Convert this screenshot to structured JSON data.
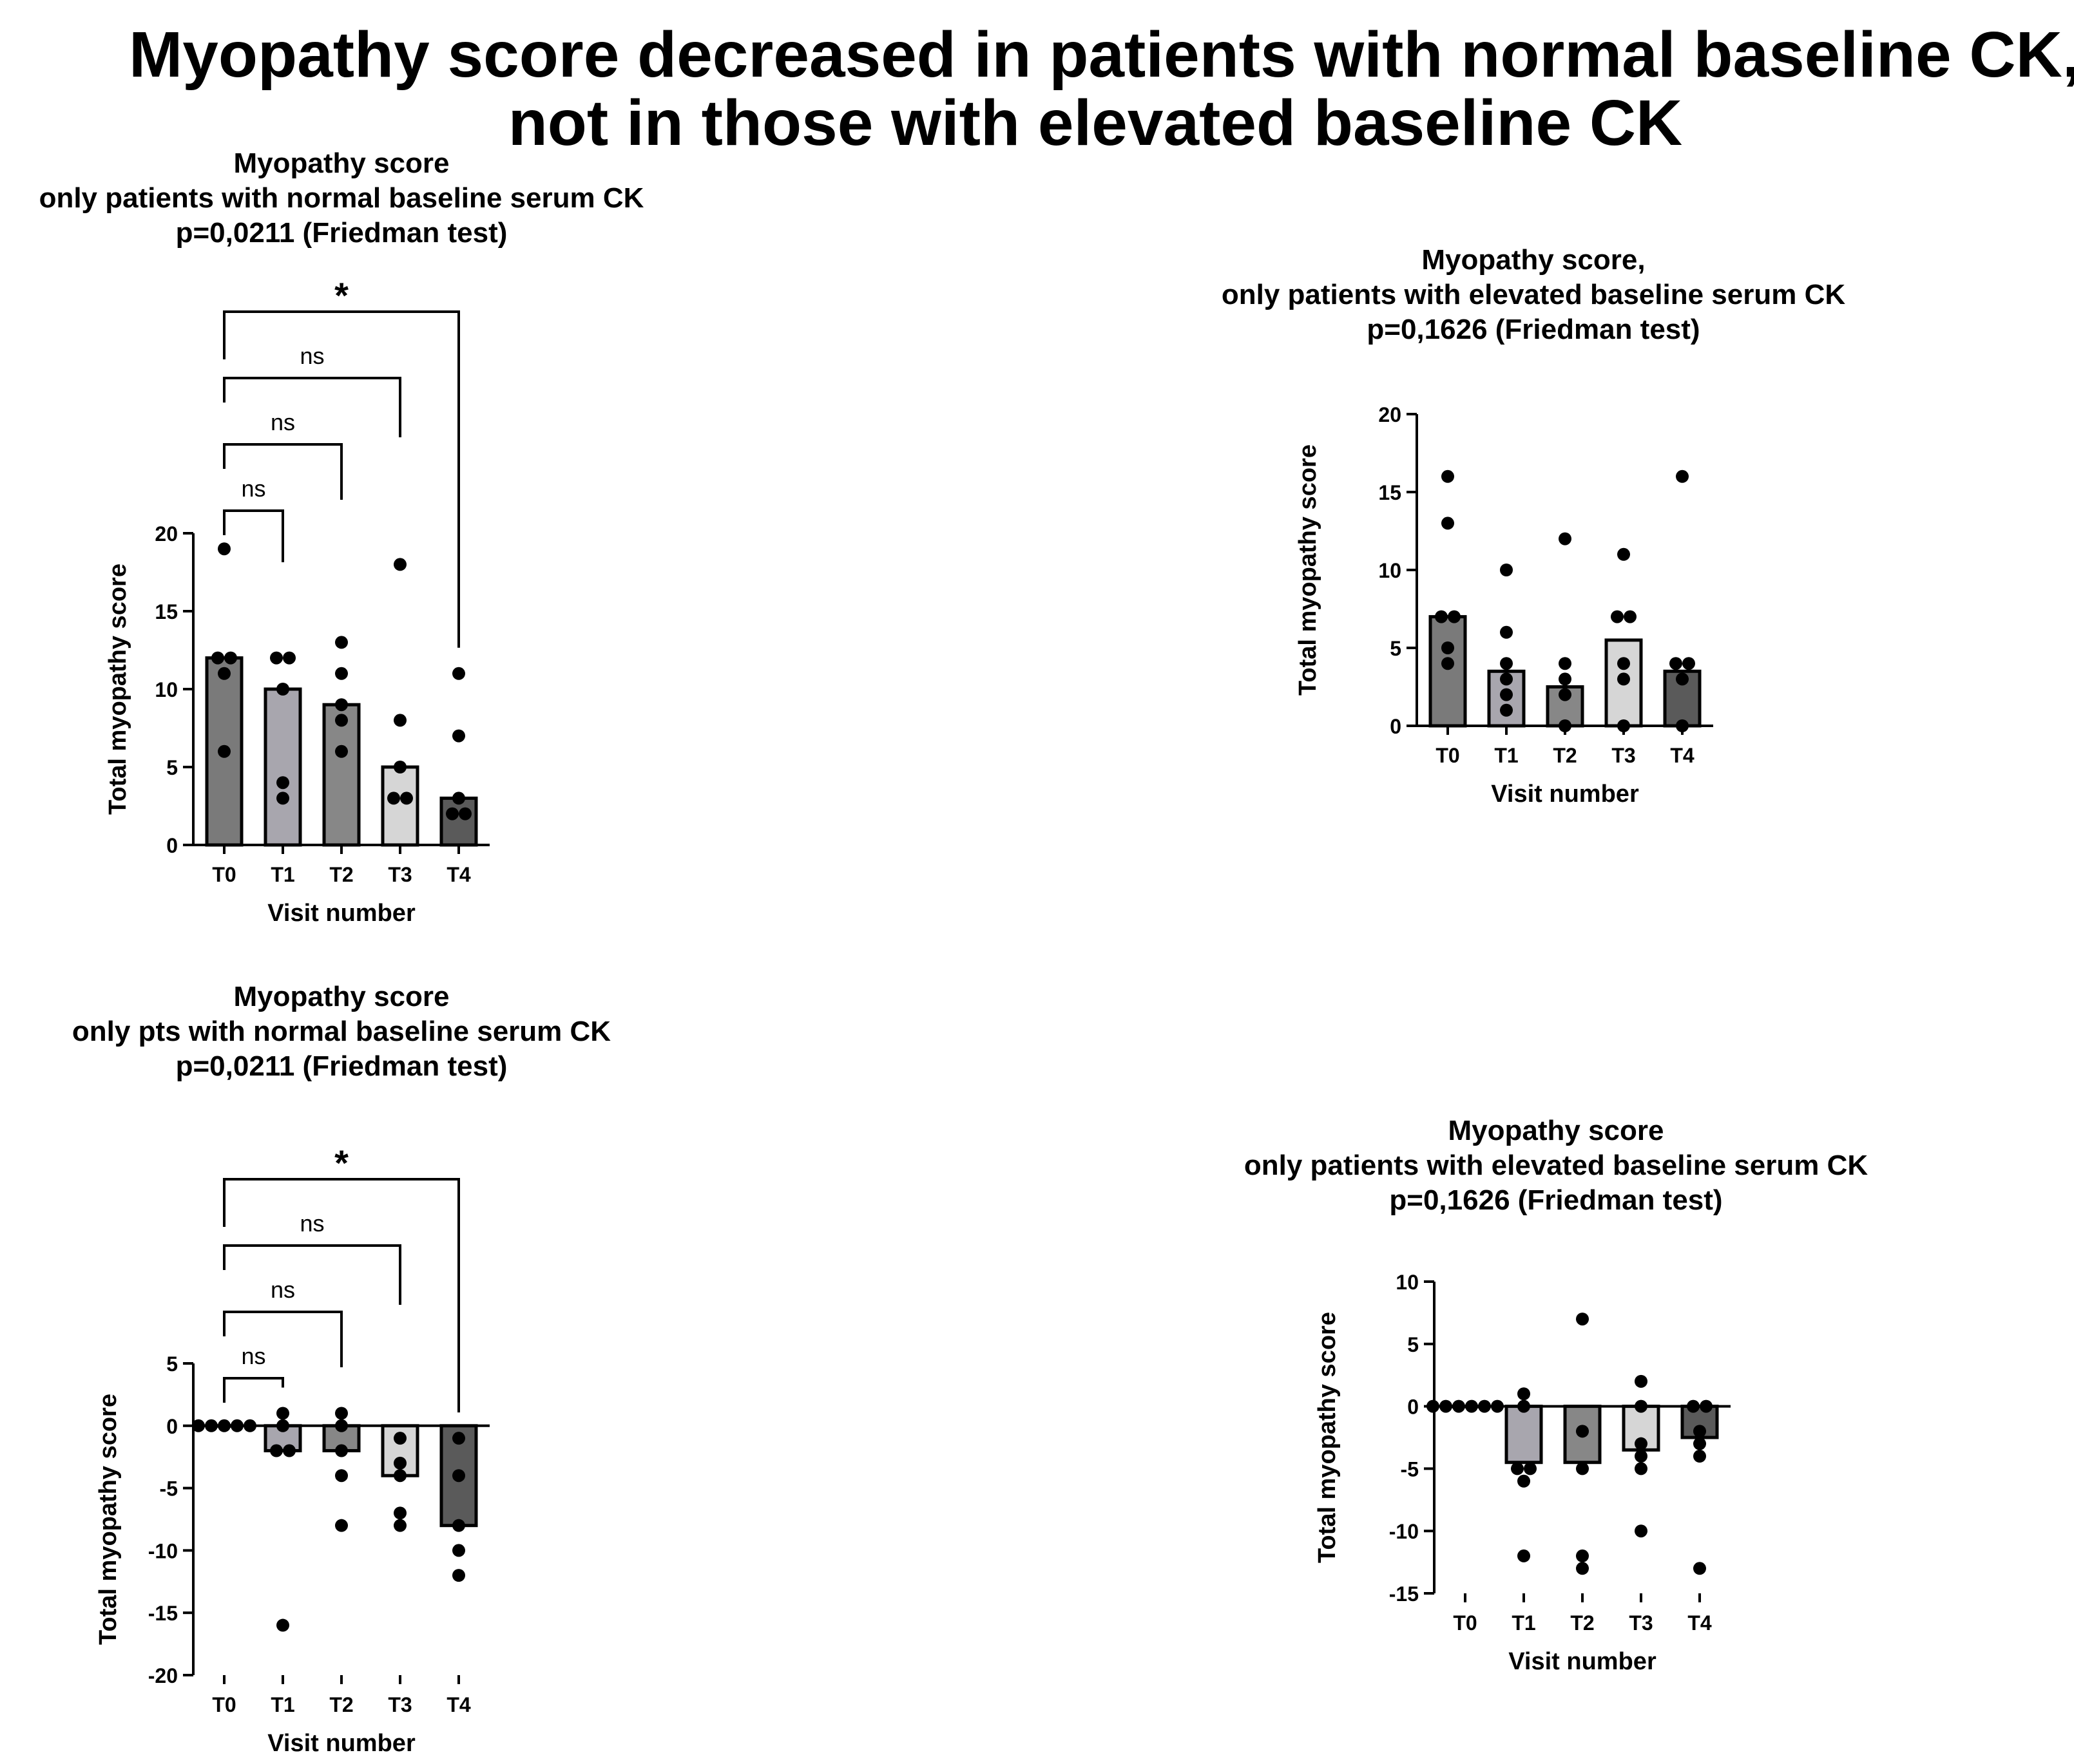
{
  "figure": {
    "title_line1": "Myopathy score decreased in patients with normal baseline CK,",
    "title_line2": "not in those with elevated baseline CK"
  },
  "chart_data": [
    {
      "type": "bar",
      "title": [
        "Myopathy score",
        "only patients with normal baseline serum CK",
        "p=0,0211 (Friedman test)"
      ],
      "xlabel": "Visit number",
      "ylabel": "Total myopathy score",
      "categories": [
        "T0",
        "T1",
        "T2",
        "T3",
        "T4"
      ],
      "values": [
        12,
        10,
        9,
        5,
        3
      ],
      "points": [
        [
          19,
          12,
          12,
          11,
          6
        ],
        [
          12,
          12,
          10,
          4,
          3
        ],
        [
          13,
          11,
          9,
          8,
          6
        ],
        [
          18,
          8,
          5,
          3,
          3
        ],
        [
          11,
          7,
          3,
          2,
          2
        ]
      ],
      "ylim": [
        0,
        20
      ],
      "yticks": [
        0,
        5,
        10,
        15,
        20
      ],
      "bar_colors": [
        "#7a7a7a",
        "#a8a6ae",
        "#878787",
        "#d6d6d6",
        "#5a5a5a"
      ],
      "comparisons": [
        {
          "from": "T0",
          "to": "T1",
          "label": "ns"
        },
        {
          "from": "T0",
          "to": "T2",
          "label": "ns"
        },
        {
          "from": "T0",
          "to": "T3",
          "label": "ns"
        },
        {
          "from": "T0",
          "to": "T4",
          "label": "*"
        }
      ]
    },
    {
      "type": "bar",
      "title": [
        "Myopathy score,",
        "only patients with elevated baseline serum CK",
        "p=0,1626 (Friedman test)"
      ],
      "xlabel": "Visit number",
      "ylabel": "Total myopathy score",
      "categories": [
        "T0",
        "T1",
        "T2",
        "T3",
        "T4"
      ],
      "values": [
        7,
        3.5,
        2.5,
        5.5,
        3.5
      ],
      "points": [
        [
          16,
          13,
          7,
          7,
          5,
          4
        ],
        [
          10,
          6,
          4,
          3,
          2,
          1
        ],
        [
          12,
          4,
          3,
          2,
          0
        ],
        [
          11,
          7,
          7,
          4,
          3,
          0
        ],
        [
          16,
          4,
          4,
          3,
          0
        ]
      ],
      "ylim": [
        0,
        20
      ],
      "yticks": [
        0,
        5,
        10,
        15,
        20
      ],
      "bar_colors": [
        "#7a7a7a",
        "#a8a6ae",
        "#878787",
        "#d6d6d6",
        "#5a5a5a"
      ],
      "comparisons": []
    },
    {
      "type": "bar",
      "title": [
        "Myopathy score",
        "only pts with normal baseline serum CK",
        "p=0,0211 (Friedman test)"
      ],
      "xlabel": "Visit number",
      "ylabel": "Total myopathy score",
      "categories": [
        "T0",
        "T1",
        "T2",
        "T3",
        "T4"
      ],
      "values": [
        0,
        -2,
        -2,
        -4,
        -8
      ],
      "points": [
        [
          0,
          0,
          0,
          0,
          0
        ],
        [
          1,
          0,
          -2,
          -2,
          -16
        ],
        [
          1,
          0,
          -2,
          -4,
          -8
        ],
        [
          -1,
          -3,
          -4,
          -7,
          -8
        ],
        [
          -1,
          -4,
          -8,
          -10,
          -12
        ]
      ],
      "ylim": [
        -20,
        5
      ],
      "yticks": [
        -20,
        -15,
        -10,
        -5,
        0,
        5
      ],
      "bar_colors": [
        "#7a7a7a",
        "#a8a6ae",
        "#878787",
        "#d6d6d6",
        "#5a5a5a"
      ],
      "comparisons": [
        {
          "from": "T0",
          "to": "T1",
          "label": "ns"
        },
        {
          "from": "T0",
          "to": "T2",
          "label": "ns"
        },
        {
          "from": "T0",
          "to": "T3",
          "label": "ns"
        },
        {
          "from": "T0",
          "to": "T4",
          "label": "*"
        }
      ]
    },
    {
      "type": "bar",
      "title": [
        "Myopathy score",
        "only patients with elevated baseline serum CK",
        "p=0,1626 (Friedman test)"
      ],
      "xlabel": "Visit number",
      "ylabel": "Total myopathy score",
      "categories": [
        "T0",
        "T1",
        "T2",
        "T3",
        "T4"
      ],
      "values": [
        0,
        -4.5,
        -4.5,
        -3.5,
        -2.5
      ],
      "points": [
        [
          0,
          0,
          0,
          0,
          0,
          0
        ],
        [
          1,
          0,
          -5,
          -5,
          -6,
          -12
        ],
        [
          7,
          -2,
          -5,
          -12,
          -13
        ],
        [
          2,
          0,
          -3,
          -4,
          -5,
          -10
        ],
        [
          0,
          0,
          -2,
          -3,
          -4,
          -13
        ]
      ],
      "ylim": [
        -15,
        10
      ],
      "yticks": [
        -15,
        -10,
        -5,
        0,
        5,
        10
      ],
      "bar_colors": [
        "#7a7a7a",
        "#a8a6ae",
        "#878787",
        "#d6d6d6",
        "#5a5a5a"
      ],
      "comparisons": []
    }
  ]
}
